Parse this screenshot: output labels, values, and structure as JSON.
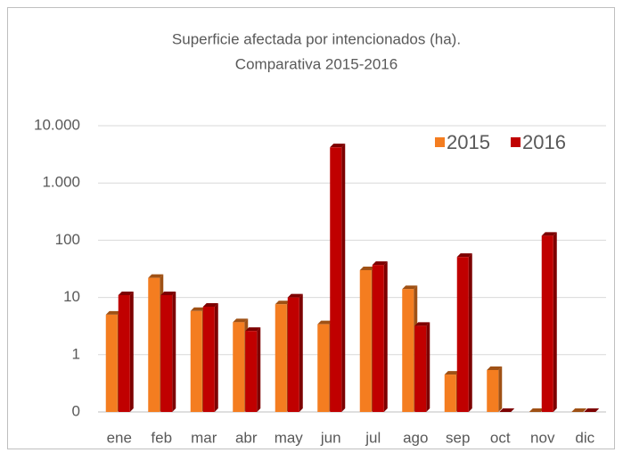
{
  "chart_data": {
    "type": "bar",
    "title": "Superficie afectada por intencionados (ha).",
    "subtitle": "Comparativa 2015-2016",
    "categories": [
      "ene",
      "feb",
      "mar",
      "abr",
      "may",
      "jun",
      "jul",
      "ago",
      "sep",
      "oct",
      "nov",
      "dic"
    ],
    "series": [
      {
        "name": "2015",
        "color": "#f47d20",
        "values": [
          5.0,
          22,
          5.8,
          3.7,
          7.6,
          3.4,
          30,
          14,
          0.45,
          0.54,
          0,
          0
        ]
      },
      {
        "name": "2016",
        "color": "#c00000",
        "values": [
          11,
          11,
          6.9,
          2.6,
          10,
          4200,
          37,
          3.2,
          51,
          0,
          120,
          0
        ]
      }
    ],
    "log_scale": true,
    "ylim": [
      0.1,
      10000
    ],
    "yticks": [
      {
        "value": 0.1,
        "label": "0"
      },
      1,
      10,
      100,
      {
        "value": 1000,
        "label": "1.000"
      },
      {
        "value": 10000,
        "label": "10.000"
      }
    ],
    "grid": true,
    "legend": "upper right"
  }
}
